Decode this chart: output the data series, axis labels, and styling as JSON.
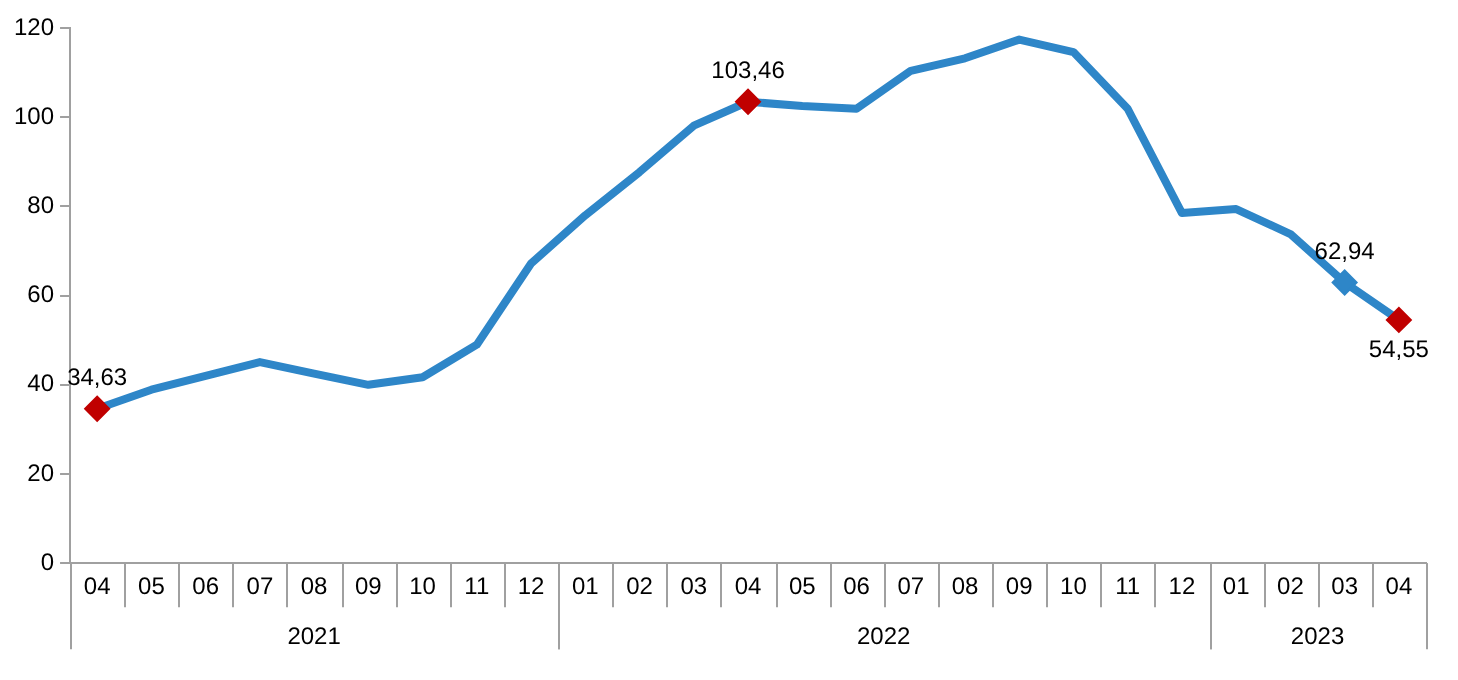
{
  "chart_data": {
    "type": "line",
    "categories": [
      "04",
      "05",
      "06",
      "07",
      "08",
      "09",
      "10",
      "11",
      "12",
      "01",
      "02",
      "03",
      "04",
      "05",
      "06",
      "07",
      "08",
      "09",
      "10",
      "11",
      "12",
      "01",
      "02",
      "03",
      "04"
    ],
    "series": [
      {
        "color": "#2e86c8",
        "values": [
          34.63,
          38.9,
          42.0,
          45.1,
          42.5,
          40.0,
          41.7,
          49.0,
          67.2,
          78.0,
          87.7,
          98.1,
          103.46,
          102.5,
          101.9,
          110.4,
          113.2,
          117.4,
          114.6,
          101.9,
          78.5,
          79.4,
          73.8,
          62.94,
          54.55
        ],
        "colors": [
          "#c00000",
          null,
          null,
          null,
          null,
          null,
          null,
          null,
          null,
          null,
          null,
          null,
          "#c00000",
          null,
          null,
          null,
          null,
          null,
          null,
          null,
          null,
          null,
          null,
          "#2e86c8",
          "#c00000"
        ],
        "value_labels": [
          "34,63",
          null,
          null,
          null,
          null,
          null,
          null,
          null,
          null,
          null,
          null,
          null,
          "103,46",
          null,
          null,
          null,
          null,
          null,
          null,
          null,
          null,
          null,
          null,
          "62,94",
          "54,55"
        ]
      }
    ],
    "annotations": [
      "2021",
      "2022",
      "2023"
    ],
    "ylim": [
      0,
      120
    ],
    "yticks": [
      0,
      20,
      40,
      60,
      80,
      100,
      120
    ],
    "grid": false,
    "legend": false,
    "line_style": "solid"
  }
}
